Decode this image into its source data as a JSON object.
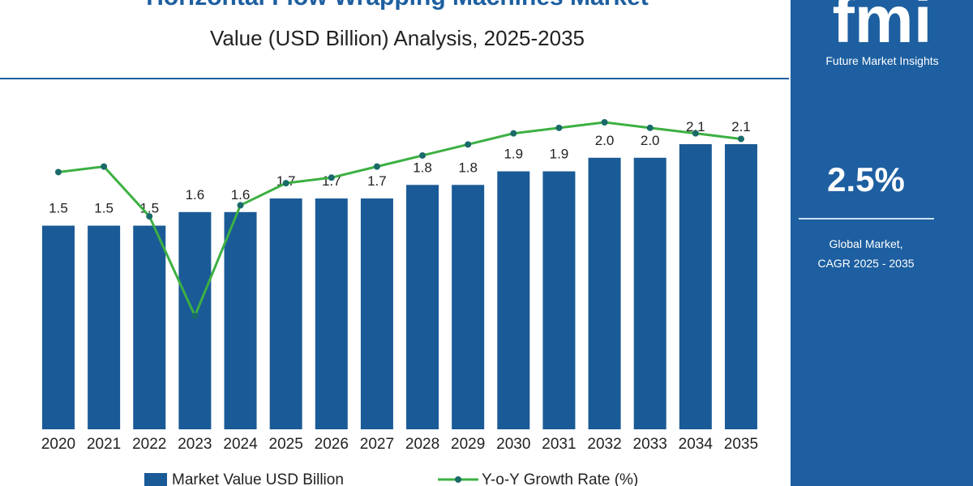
{
  "chart_data": {
    "type": "bar",
    "title": "Horizontal Flow Wrapping Machines Market",
    "subtitle": "Value (USD Billion) Analysis, 2025-2035",
    "categories": [
      "2020",
      "2021",
      "2022",
      "2023",
      "2024",
      "2025",
      "2026",
      "2027",
      "2028",
      "2029",
      "2030",
      "2031",
      "2032",
      "2033",
      "2034",
      "2035"
    ],
    "series": [
      {
        "name": "Market Value USD Billion",
        "type": "bar",
        "color": "#1a5a96",
        "values": [
          1.5,
          1.5,
          1.5,
          1.6,
          1.6,
          1.7,
          1.7,
          1.7,
          1.8,
          1.8,
          1.9,
          1.9,
          2.0,
          2.0,
          2.1,
          2.1
        ],
        "value_labels": [
          "1.5",
          "1.5",
          "1.5",
          "1.6",
          "1.6",
          "1.7",
          "1.7",
          "1.7",
          "1.8",
          "1.8",
          "1.9",
          "1.9",
          "2.0",
          "2.0",
          "2.1",
          "2.1"
        ]
      },
      {
        "name": "Y-o-Y Growth Rate (%)",
        "type": "line",
        "color": "#3cb043",
        "marker_color": "#1a6a6a",
        "values": [
          2.6,
          2.7,
          1.8,
          0.0,
          2.0,
          2.4,
          2.5,
          2.7,
          2.9,
          3.1,
          3.3,
          3.4,
          3.5,
          3.4,
          3.3,
          3.2
        ]
      }
    ]
  },
  "sidebar": {
    "logo": "fmi",
    "brand": "Future Market Insights",
    "cagr": "2.5%",
    "caption_line1": "Global Market,",
    "caption_line2": "CAGR 2025 - 2035"
  }
}
